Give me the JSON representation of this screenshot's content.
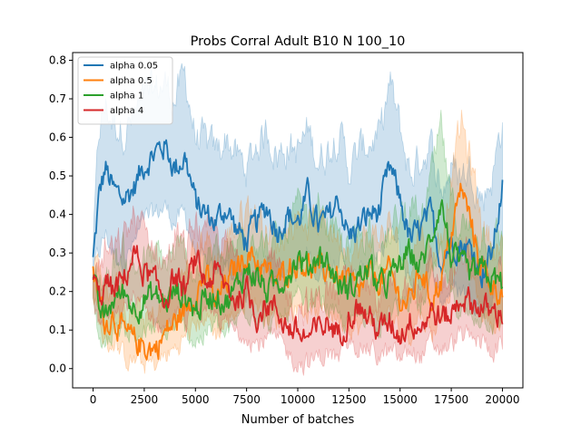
{
  "chart_data": {
    "type": "line",
    "title": "Probs Corral Adult B10 N 100_10",
    "xlabel": "Number of batches",
    "ylabel": "",
    "xlim": [
      -1000,
      21000
    ],
    "ylim": [
      -0.05,
      0.82
    ],
    "xticks": [
      0,
      2500,
      5000,
      7500,
      10000,
      12500,
      15000,
      17500,
      20000
    ],
    "yticks": [
      0.0,
      0.1,
      0.2,
      0.3,
      0.4,
      0.5,
      0.6,
      0.7,
      0.8
    ],
    "grid": false,
    "legend_position": "top-left",
    "bands": "shaded min-max envelope per series",
    "series": [
      {
        "name": "alpha 0.05",
        "color": "#1f77b4",
        "x": [
          0,
          300,
          600,
          1000,
          1500,
          2000,
          2500,
          3000,
          3500,
          4000,
          4500,
          5000,
          5500,
          6000,
          6500,
          7000,
          7500,
          8000,
          8500,
          9000,
          9500,
          10000,
          10500,
          11000,
          11500,
          12000,
          12500,
          13000,
          13500,
          14000,
          14500,
          15000,
          15500,
          16000,
          16500,
          17000,
          17500,
          18000,
          18500,
          19000,
          19500,
          20000
        ],
        "mean": [
          0.28,
          0.45,
          0.52,
          0.46,
          0.44,
          0.47,
          0.53,
          0.56,
          0.58,
          0.52,
          0.55,
          0.43,
          0.4,
          0.38,
          0.42,
          0.36,
          0.33,
          0.38,
          0.42,
          0.36,
          0.4,
          0.38,
          0.45,
          0.37,
          0.39,
          0.44,
          0.34,
          0.37,
          0.4,
          0.41,
          0.52,
          0.44,
          0.33,
          0.36,
          0.4,
          0.28,
          0.33,
          0.32,
          0.31,
          0.25,
          0.3,
          0.47
        ],
        "lower": [
          0.25,
          0.3,
          0.35,
          0.3,
          0.28,
          0.32,
          0.38,
          0.4,
          0.42,
          0.38,
          0.4,
          0.3,
          0.26,
          0.24,
          0.28,
          0.22,
          0.2,
          0.24,
          0.28,
          0.22,
          0.26,
          0.24,
          0.3,
          0.24,
          0.26,
          0.3,
          0.22,
          0.24,
          0.27,
          0.28,
          0.36,
          0.3,
          0.22,
          0.23,
          0.27,
          0.17,
          0.21,
          0.2,
          0.2,
          0.15,
          0.18,
          0.32
        ],
        "upper": [
          0.32,
          0.62,
          0.68,
          0.64,
          0.62,
          0.65,
          0.7,
          0.72,
          0.74,
          0.7,
          0.76,
          0.6,
          0.58,
          0.56,
          0.6,
          0.55,
          0.52,
          0.58,
          0.62,
          0.55,
          0.58,
          0.56,
          0.62,
          0.54,
          0.57,
          0.62,
          0.52,
          0.56,
          0.59,
          0.6,
          0.74,
          0.62,
          0.5,
          0.55,
          0.58,
          0.46,
          0.52,
          0.5,
          0.52,
          0.44,
          0.5,
          0.64
        ]
      },
      {
        "name": "alpha 0.5",
        "color": "#ff7f0e",
        "x": [
          0,
          300,
          600,
          1000,
          1500,
          2000,
          2500,
          3000,
          3500,
          4000,
          4500,
          5000,
          5500,
          6000,
          6500,
          7000,
          7500,
          8000,
          8500,
          9000,
          9500,
          10000,
          10500,
          11000,
          11500,
          12000,
          12500,
          13000,
          13500,
          14000,
          14500,
          15000,
          15500,
          16000,
          16500,
          17000,
          17500,
          18000,
          18500,
          19000,
          19500,
          20000
        ],
        "mean": [
          0.24,
          0.18,
          0.12,
          0.14,
          0.09,
          0.07,
          0.06,
          0.05,
          0.09,
          0.12,
          0.15,
          0.2,
          0.24,
          0.17,
          0.22,
          0.26,
          0.3,
          0.28,
          0.25,
          0.22,
          0.26,
          0.28,
          0.27,
          0.25,
          0.26,
          0.23,
          0.22,
          0.2,
          0.24,
          0.23,
          0.25,
          0.18,
          0.17,
          0.26,
          0.18,
          0.23,
          0.35,
          0.47,
          0.37,
          0.26,
          0.22,
          0.2
        ],
        "lower": [
          0.2,
          0.12,
          0.06,
          0.07,
          0.03,
          0.02,
          0.01,
          0.01,
          0.03,
          0.05,
          0.08,
          0.11,
          0.14,
          0.09,
          0.12,
          0.15,
          0.18,
          0.17,
          0.14,
          0.12,
          0.15,
          0.16,
          0.15,
          0.14,
          0.15,
          0.13,
          0.12,
          0.1,
          0.14,
          0.13,
          0.14,
          0.09,
          0.09,
          0.15,
          0.09,
          0.13,
          0.22,
          0.32,
          0.24,
          0.15,
          0.12,
          0.1
        ],
        "upper": [
          0.28,
          0.26,
          0.2,
          0.23,
          0.17,
          0.14,
          0.13,
          0.12,
          0.17,
          0.21,
          0.24,
          0.3,
          0.35,
          0.27,
          0.33,
          0.38,
          0.42,
          0.4,
          0.37,
          0.33,
          0.37,
          0.4,
          0.39,
          0.37,
          0.38,
          0.34,
          0.33,
          0.31,
          0.35,
          0.34,
          0.37,
          0.29,
          0.28,
          0.38,
          0.29,
          0.34,
          0.5,
          0.64,
          0.52,
          0.38,
          0.33,
          0.3
        ]
      },
      {
        "name": "alpha 1",
        "color": "#2ca02c",
        "x": [
          0,
          300,
          600,
          1000,
          1500,
          2000,
          2500,
          3000,
          3500,
          4000,
          4500,
          5000,
          5500,
          6000,
          6500,
          7000,
          7500,
          8000,
          8500,
          9000,
          9500,
          10000,
          10500,
          11000,
          11500,
          12000,
          12500,
          13000,
          13500,
          14000,
          14500,
          15000,
          15500,
          16000,
          16500,
          17000,
          17500,
          18000,
          18500,
          19000,
          19500,
          20000
        ],
        "mean": [
          0.22,
          0.15,
          0.13,
          0.18,
          0.2,
          0.16,
          0.18,
          0.19,
          0.17,
          0.2,
          0.19,
          0.15,
          0.18,
          0.2,
          0.17,
          0.21,
          0.26,
          0.24,
          0.2,
          0.22,
          0.25,
          0.29,
          0.26,
          0.3,
          0.27,
          0.22,
          0.2,
          0.24,
          0.26,
          0.21,
          0.23,
          0.27,
          0.3,
          0.26,
          0.34,
          0.44,
          0.29,
          0.26,
          0.24,
          0.25,
          0.23,
          0.22
        ],
        "lower": [
          0.18,
          0.08,
          0.06,
          0.1,
          0.11,
          0.08,
          0.09,
          0.1,
          0.08,
          0.11,
          0.1,
          0.07,
          0.09,
          0.11,
          0.08,
          0.12,
          0.16,
          0.14,
          0.11,
          0.12,
          0.14,
          0.18,
          0.15,
          0.19,
          0.16,
          0.12,
          0.11,
          0.14,
          0.15,
          0.11,
          0.13,
          0.16,
          0.19,
          0.15,
          0.22,
          0.3,
          0.18,
          0.15,
          0.13,
          0.14,
          0.12,
          0.11
        ],
        "upper": [
          0.26,
          0.24,
          0.22,
          0.28,
          0.3,
          0.26,
          0.28,
          0.29,
          0.27,
          0.3,
          0.29,
          0.25,
          0.28,
          0.3,
          0.27,
          0.31,
          0.37,
          0.35,
          0.3,
          0.32,
          0.36,
          0.41,
          0.37,
          0.42,
          0.38,
          0.32,
          0.3,
          0.35,
          0.37,
          0.31,
          0.34,
          0.39,
          0.43,
          0.37,
          0.48,
          0.62,
          0.42,
          0.37,
          0.35,
          0.36,
          0.34,
          0.33
        ]
      },
      {
        "name": "alpha 4",
        "color": "#d62728",
        "x": [
          0,
          300,
          600,
          1000,
          1500,
          2000,
          2500,
          3000,
          3500,
          4000,
          4500,
          5000,
          5500,
          6000,
          6500,
          7000,
          7500,
          8000,
          8500,
          9000,
          9500,
          10000,
          10500,
          11000,
          11500,
          12000,
          12500,
          13000,
          13500,
          14000,
          14500,
          15000,
          15500,
          16000,
          16500,
          17000,
          17500,
          18000,
          18500,
          19000,
          19500,
          20000
        ],
        "mean": [
          0.23,
          0.18,
          0.22,
          0.2,
          0.23,
          0.3,
          0.25,
          0.22,
          0.18,
          0.24,
          0.2,
          0.28,
          0.22,
          0.25,
          0.21,
          0.18,
          0.2,
          0.14,
          0.17,
          0.15,
          0.11,
          0.09,
          0.08,
          0.1,
          0.12,
          0.09,
          0.14,
          0.16,
          0.13,
          0.1,
          0.12,
          0.09,
          0.13,
          0.11,
          0.15,
          0.13,
          0.14,
          0.19,
          0.17,
          0.16,
          0.14,
          0.15
        ],
        "lower": [
          0.19,
          0.11,
          0.14,
          0.12,
          0.14,
          0.19,
          0.15,
          0.13,
          0.1,
          0.14,
          0.11,
          0.17,
          0.12,
          0.14,
          0.11,
          0.09,
          0.1,
          0.06,
          0.08,
          0.07,
          0.04,
          0.02,
          0.01,
          0.03,
          0.04,
          0.02,
          0.06,
          0.07,
          0.05,
          0.03,
          0.04,
          0.02,
          0.05,
          0.03,
          0.06,
          0.05,
          0.06,
          0.09,
          0.07,
          0.07,
          0.05,
          0.06
        ],
        "upper": [
          0.27,
          0.26,
          0.31,
          0.29,
          0.33,
          0.4,
          0.35,
          0.32,
          0.27,
          0.34,
          0.3,
          0.39,
          0.32,
          0.36,
          0.31,
          0.28,
          0.3,
          0.24,
          0.27,
          0.25,
          0.19,
          0.17,
          0.16,
          0.18,
          0.21,
          0.17,
          0.23,
          0.26,
          0.22,
          0.18,
          0.21,
          0.17,
          0.22,
          0.2,
          0.25,
          0.22,
          0.23,
          0.3,
          0.27,
          0.26,
          0.24,
          0.25
        ]
      }
    ]
  }
}
